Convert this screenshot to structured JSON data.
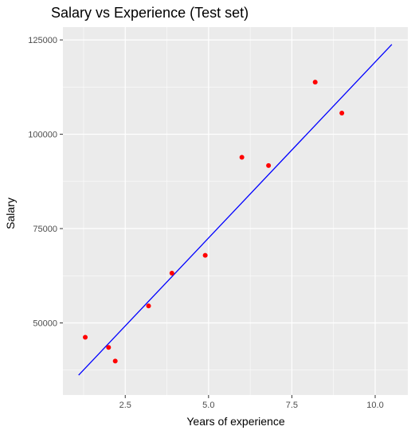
{
  "chart_data": {
    "type": "scatter",
    "title": "Salary vs Experience (Test set)",
    "xlabel": "Years of experience",
    "ylabel": "Salary",
    "xlim": [
      0.63,
      10.98
    ],
    "ylim": [
      30900,
      128400
    ],
    "x_ticks": [
      2.5,
      5.0,
      7.5,
      10.0
    ],
    "x_tick_labels": [
      "2.5",
      "5.0",
      "7.5",
      "10.0"
    ],
    "y_ticks": [
      50000,
      75000,
      100000,
      125000
    ],
    "y_tick_labels": [
      "50000",
      "75000",
      "100000",
      "125000"
    ],
    "grid": true,
    "panel_background": "#ebebeb",
    "grid_color": "#ffffff",
    "series": [
      {
        "kind": "points",
        "color": "#ff0000",
        "points": [
          {
            "x": 1.3,
            "y": 46200
          },
          {
            "x": 2.0,
            "y": 43500
          },
          {
            "x": 2.2,
            "y": 39900
          },
          {
            "x": 3.2,
            "y": 54500
          },
          {
            "x": 3.9,
            "y": 63200
          },
          {
            "x": 4.9,
            "y": 67900
          },
          {
            "x": 6.0,
            "y": 93900
          },
          {
            "x": 6.8,
            "y": 91700
          },
          {
            "x": 8.2,
            "y": 113800
          },
          {
            "x": 9.0,
            "y": 105600
          }
        ]
      },
      {
        "kind": "regression-line",
        "color": "#0000ff",
        "points": [
          {
            "x": 1.1,
            "y": 36150
          },
          {
            "x": 10.5,
            "y": 123800
          }
        ]
      }
    ]
  }
}
